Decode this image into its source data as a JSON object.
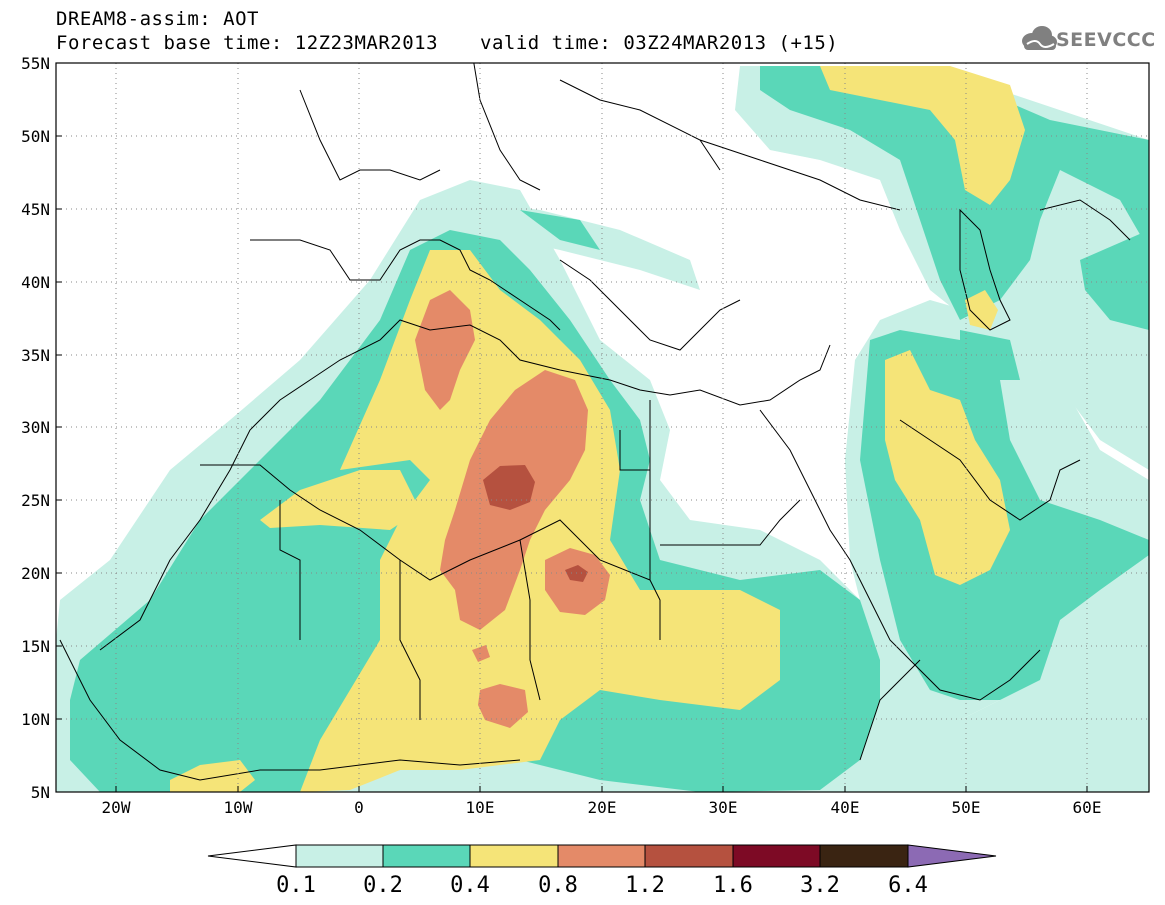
{
  "title": {
    "line1": "DREAM8-assim: AOT",
    "base_time": "Forecast base time: 12Z23MAR2013",
    "valid_time": "valid time: 03Z24MAR2013 (+15)"
  },
  "logo": {
    "text": "SEEVCCC",
    "icon": "cloud-logo-icon"
  },
  "map": {
    "lon_range": [
      -25,
      65
    ],
    "lat_range": [
      5,
      55
    ],
    "lat_labels": [
      "5N",
      "10N",
      "15N",
      "20N",
      "25N",
      "30N",
      "35N",
      "40N",
      "45N",
      "50N",
      "55N"
    ],
    "lon_labels": [
      "20W",
      "10W",
      "0",
      "10E",
      "20E",
      "30E",
      "40E",
      "50E",
      "60E"
    ],
    "grid": "dotted"
  },
  "colorbar": {
    "levels": [
      "0.1",
      "0.2",
      "0.4",
      "0.8",
      "1.2",
      "1.6",
      "3.2",
      "6.4"
    ],
    "colors": [
      "#c8f0e6",
      "#5ad7b8",
      "#f5e478",
      "#e48a68",
      "#b5513f",
      "#7d0a25",
      "#3a2412",
      "#8c6ab4"
    ],
    "under_color": "#ffffff"
  },
  "colors": {
    "c1": "#c8f0e6",
    "c2": "#5ad7b8",
    "c3": "#f5e478",
    "c4": "#e48a68",
    "c5": "#b5513f"
  }
}
